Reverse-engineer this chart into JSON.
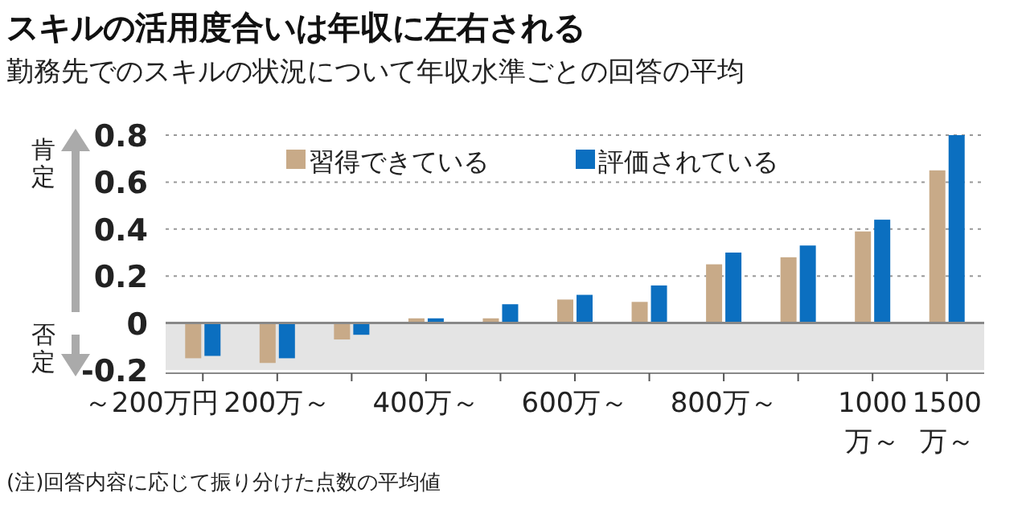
{
  "chart_data": {
    "type": "bar",
    "title": "スキルの活用度合いは年収に左右される",
    "subtitle": "勤務先でのスキルの状況について年収水準ごとの回答の平均",
    "categories": [
      "～200万円",
      "200万～",
      null,
      "400万～",
      null,
      "600万～",
      null,
      "800万～",
      null,
      "1000万～",
      "1500万～"
    ],
    "series": [
      {
        "name": "習得できている",
        "color": "#c8aa88",
        "values": [
          -0.15,
          -0.17,
          -0.07,
          0.02,
          0.02,
          0.1,
          0.09,
          0.25,
          0.28,
          0.39,
          0.65
        ]
      },
      {
        "name": "評価されている",
        "color": "#0b6fc0",
        "values": [
          -0.14,
          -0.15,
          -0.05,
          0.02,
          0.08,
          0.12,
          0.16,
          0.3,
          0.33,
          0.44,
          0.8
        ]
      }
    ],
    "ylim": [
      -0.2,
      0.8
    ],
    "yticks": [
      -0.2,
      0,
      0.2,
      0.4,
      0.6,
      0.8
    ],
    "grid": "y",
    "legend": "top left",
    "bands": [
      {
        "axis": "y",
        "from": -0.2,
        "to": 0,
        "color": "#e4e4e4"
      }
    ],
    "annotations": [
      "肯定",
      "否定",
      "(注)回答内容に応じて振り分けた点数の平均値"
    ]
  }
}
